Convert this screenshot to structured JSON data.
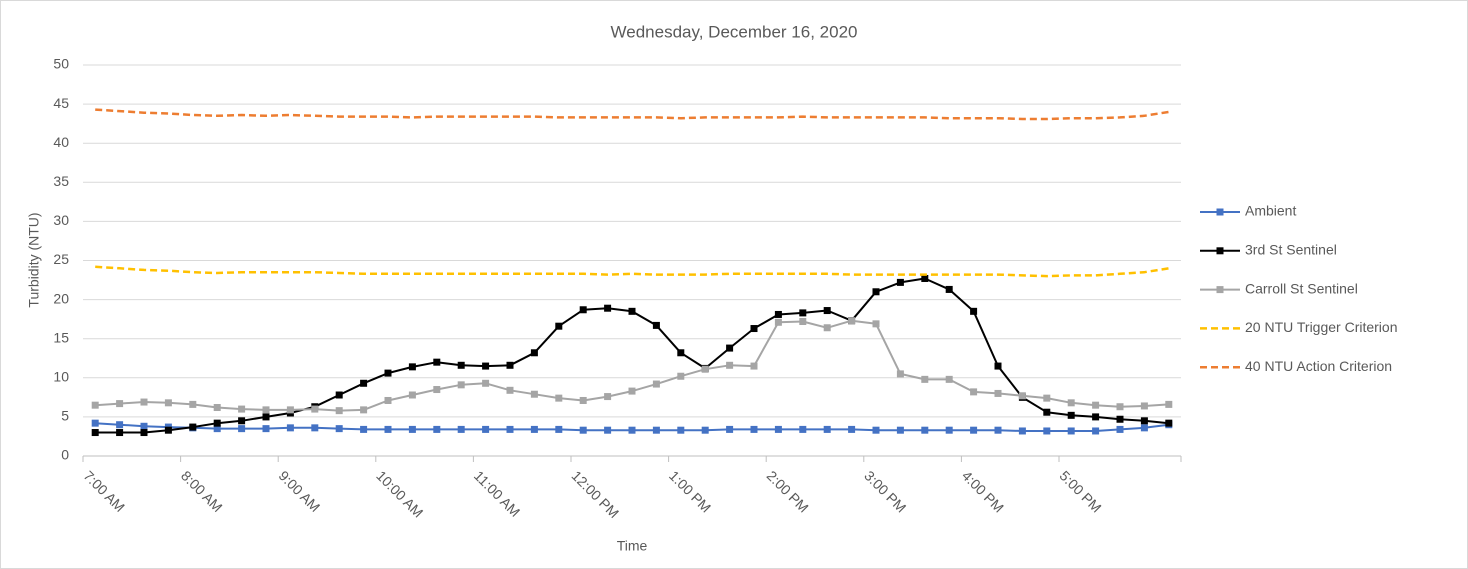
{
  "chart_data": {
    "type": "line",
    "title": "Wednesday, December 16, 2020",
    "x_label": "Time",
    "y_label": "Turbidity (NTU)",
    "categories": [
      "7:00 AM",
      null,
      null,
      null,
      "8:00 AM",
      null,
      null,
      null,
      "9:00 AM",
      null,
      null,
      null,
      "10:00 AM",
      null,
      null,
      null,
      "11:00 AM",
      null,
      null,
      null,
      "12:00 PM",
      null,
      null,
      null,
      "1:00 PM",
      null,
      null,
      null,
      "2:00 PM",
      null,
      null,
      null,
      "3:00 PM",
      null,
      null,
      null,
      "4:00 PM",
      null,
      null,
      null,
      "5:00 PM",
      null,
      null,
      null,
      null
    ],
    "ylim": [
      0,
      50
    ],
    "yticks": [
      0,
      5,
      10,
      15,
      20,
      25,
      30,
      35,
      40,
      45,
      50
    ],
    "grid": true,
    "legend": "right",
    "series": [
      {
        "name": "Ambient",
        "color": "#4472c4",
        "marker": "square",
        "dashed": false,
        "values": [
          4.2,
          4.0,
          3.8,
          3.7,
          3.6,
          3.5,
          3.5,
          3.5,
          3.6,
          3.6,
          3.5,
          3.4,
          3.4,
          3.4,
          3.4,
          3.4,
          3.4,
          3.4,
          3.4,
          3.4,
          3.3,
          3.3,
          3.3,
          3.3,
          3.3,
          3.3,
          3.4,
          3.4,
          3.4,
          3.4,
          3.4,
          3.4,
          3.3,
          3.3,
          3.3,
          3.3,
          3.3,
          3.3,
          3.2,
          3.2,
          3.2,
          3.2,
          3.4,
          3.6,
          4.0
        ]
      },
      {
        "name": "3rd St Sentinel",
        "color": "#000000",
        "marker": "square",
        "dashed": false,
        "values": [
          3.0,
          3.0,
          3.0,
          3.3,
          3.7,
          4.2,
          4.5,
          5.0,
          5.5,
          6.3,
          7.8,
          9.3,
          10.6,
          11.4,
          12.0,
          11.6,
          11.5,
          11.6,
          13.2,
          16.6,
          18.7,
          18.9,
          18.5,
          16.7,
          13.2,
          11.2,
          13.8,
          16.3,
          18.1,
          18.3,
          18.6,
          17.3,
          21.0,
          22.2,
          22.7,
          21.3,
          18.5,
          11.5,
          7.5,
          5.6,
          5.2,
          5.0,
          4.7,
          4.5,
          4.2
        ]
      },
      {
        "name": "Carroll St Sentinel",
        "color": "#a5a5a5",
        "marker": "square",
        "dashed": false,
        "values": [
          6.5,
          6.7,
          6.9,
          6.8,
          6.6,
          6.2,
          6.0,
          5.9,
          5.9,
          6.0,
          5.8,
          5.9,
          7.1,
          7.8,
          8.5,
          9.1,
          9.3,
          8.4,
          7.9,
          7.4,
          7.1,
          7.6,
          8.3,
          9.2,
          10.2,
          11.1,
          11.6,
          11.5,
          17.1,
          17.2,
          16.4,
          17.3,
          16.9,
          10.5,
          9.8,
          9.8,
          8.2,
          8.0,
          7.7,
          7.4,
          6.8,
          6.5,
          6.3,
          6.4,
          6.6
        ]
      },
      {
        "name": "20 NTU Trigger Criterion",
        "color": "#ffc000",
        "marker": "none",
        "dashed": true,
        "values": [
          24.2,
          24.0,
          23.8,
          23.7,
          23.5,
          23.4,
          23.5,
          23.5,
          23.5,
          23.5,
          23.4,
          23.3,
          23.3,
          23.3,
          23.3,
          23.3,
          23.3,
          23.3,
          23.3,
          23.3,
          23.3,
          23.2,
          23.3,
          23.2,
          23.2,
          23.2,
          23.3,
          23.3,
          23.3,
          23.3,
          23.3,
          23.2,
          23.2,
          23.2,
          23.2,
          23.2,
          23.2,
          23.2,
          23.1,
          23.0,
          23.1,
          23.1,
          23.3,
          23.5,
          24.0
        ]
      },
      {
        "name": "40 NTU Action Criterion",
        "color": "#ed7d31",
        "marker": "none",
        "dashed": true,
        "values": [
          44.3,
          44.1,
          43.9,
          43.8,
          43.6,
          43.5,
          43.6,
          43.5,
          43.6,
          43.5,
          43.4,
          43.4,
          43.4,
          43.3,
          43.4,
          43.4,
          43.4,
          43.4,
          43.4,
          43.3,
          43.3,
          43.3,
          43.3,
          43.3,
          43.2,
          43.3,
          43.3,
          43.3,
          43.3,
          43.4,
          43.3,
          43.3,
          43.3,
          43.3,
          43.3,
          43.2,
          43.2,
          43.2,
          43.1,
          43.1,
          43.2,
          43.2,
          43.3,
          43.5,
          44.0
        ]
      }
    ]
  }
}
